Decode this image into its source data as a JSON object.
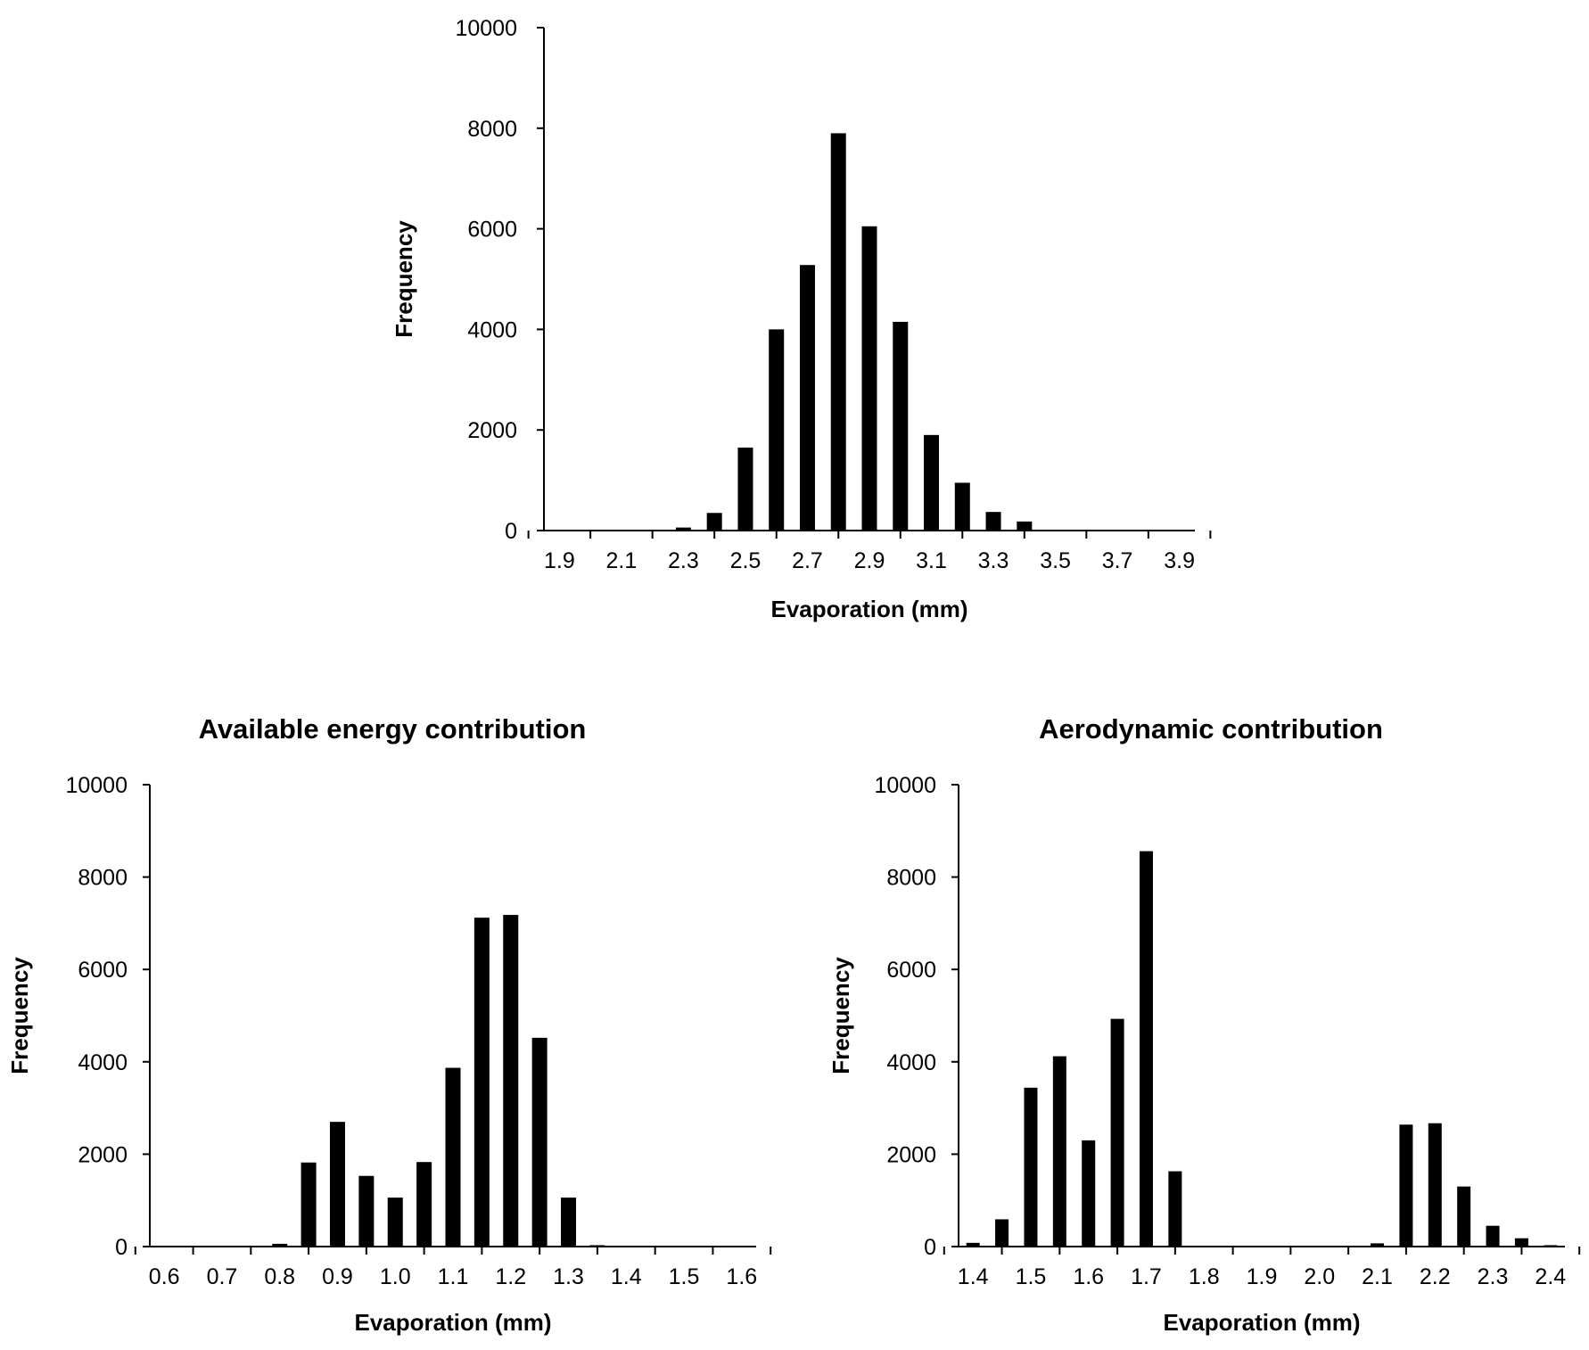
{
  "chart_data": [
    {
      "type": "bar",
      "title": "",
      "xlabel": "Evaporation (mm)",
      "ylabel": "Frequency",
      "xlim": [
        1.85,
        3.95
      ],
      "ylim": [
        0,
        10000
      ],
      "yticks": [
        0,
        2000,
        4000,
        6000,
        8000,
        10000
      ],
      "xticks": [
        "1.9",
        "2.1",
        "2.3",
        "2.5",
        "2.7",
        "2.9",
        "3.1",
        "3.3",
        "3.5",
        "3.7",
        "3.9"
      ],
      "grid": false,
      "bar_color": "#000000",
      "x": [
        2.3,
        2.4,
        2.5,
        2.6,
        2.7,
        2.8,
        2.9,
        3.0,
        3.1,
        3.2,
        3.3,
        3.4
      ],
      "values": [
        60,
        350,
        1650,
        4000,
        5280,
        7900,
        6050,
        4150,
        1900,
        950,
        370,
        180
      ]
    },
    {
      "type": "bar",
      "title": "Available energy contribution",
      "xlabel": "Evaporation (mm)",
      "ylabel": "Frequency",
      "xlim": [
        0.575,
        1.625
      ],
      "ylim": [
        0,
        10000
      ],
      "yticks": [
        0,
        2000,
        4000,
        6000,
        8000,
        10000
      ],
      "xticks": [
        "0.6",
        "0.7",
        "0.8",
        "0.9",
        "1.0",
        "1.1",
        "1.2",
        "1.3",
        "1.4",
        "1.5",
        "1.6"
      ],
      "grid": false,
      "bar_color": "#000000",
      "x": [
        0.8,
        0.85,
        0.9,
        0.95,
        1.0,
        1.05,
        1.1,
        1.15,
        1.2,
        1.25,
        1.3,
        1.35
      ],
      "values": [
        60,
        1820,
        2700,
        1530,
        1060,
        1830,
        3870,
        7120,
        7180,
        4520,
        1060,
        30
      ]
    },
    {
      "type": "bar",
      "title": "Aerodynamic contribution",
      "xlabel": "Evaporation (mm)",
      "ylabel": "Frequency",
      "xlim": [
        1.375,
        2.425
      ],
      "ylim": [
        0,
        10000
      ],
      "yticks": [
        0,
        2000,
        4000,
        6000,
        8000,
        10000
      ],
      "xticks": [
        "1.4",
        "1.5",
        "1.6",
        "1.7",
        "1.8",
        "1.9",
        "2.0",
        "2.1",
        "2.2",
        "2.3",
        "2.4"
      ],
      "grid": false,
      "bar_color": "#000000",
      "x": [
        1.4,
        1.45,
        1.5,
        1.55,
        1.6,
        1.65,
        1.7,
        1.75,
        2.1,
        2.15,
        2.2,
        2.25,
        2.3,
        2.35,
        2.4
      ],
      "values": [
        80,
        590,
        3440,
        4120,
        2300,
        4930,
        8560,
        1630,
        70,
        2640,
        2670,
        1300,
        450,
        180,
        30
      ]
    }
  ]
}
